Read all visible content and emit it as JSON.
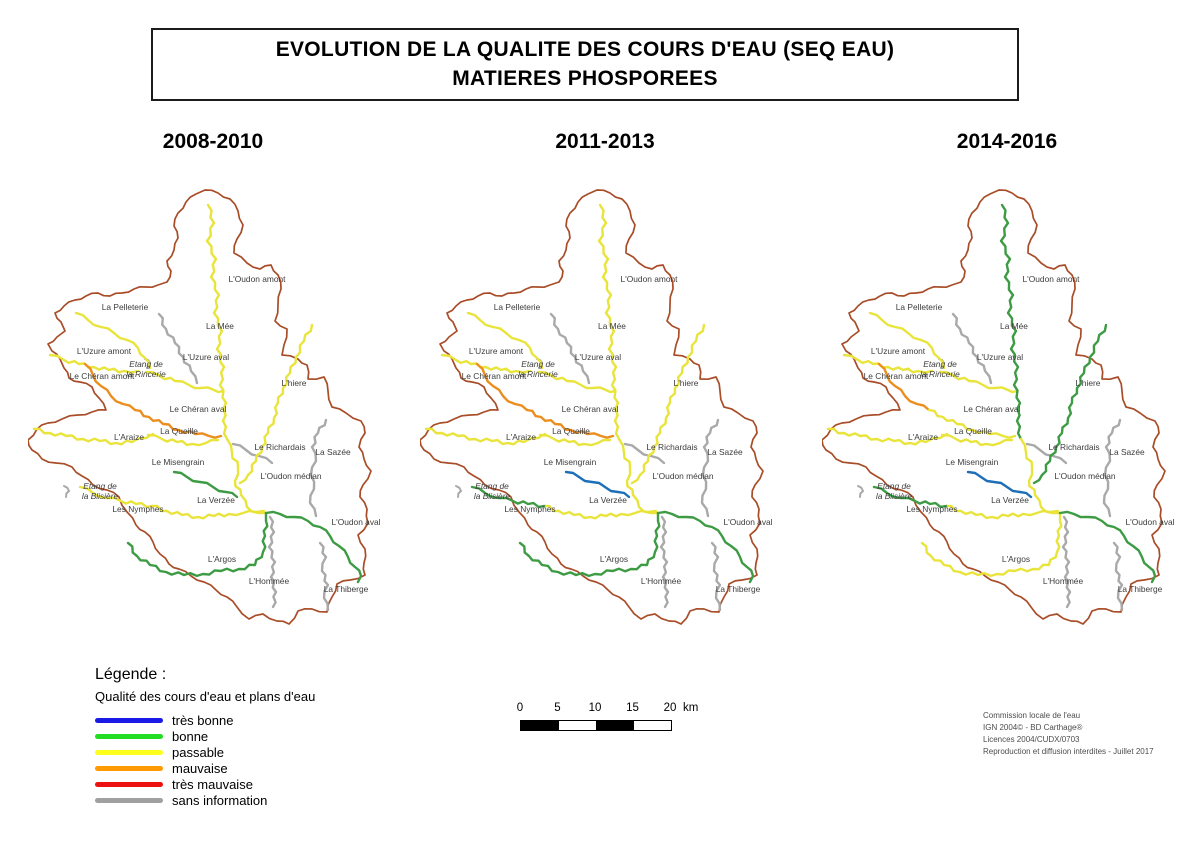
{
  "title": {
    "line1": "EVOLUTION DE LA QUALITE DES COURS D'EAU (SEQ EAU)",
    "line2": "MATIERES PHOSPOREES"
  },
  "periods": [
    {
      "label": "2008-2010",
      "river_quality": {
        "oudon_amont": "passable",
        "pelleterie": "passable",
        "mee": "sans_information",
        "uzure_amont": "passable",
        "uzure_aval": "passable",
        "cheran_amont": "mauvaise",
        "cheran_aval": "mauvaise",
        "hiere": "passable",
        "queille": "passable",
        "richardais": "sans_information",
        "sazee": "sans_information",
        "misengrain": "bonne",
        "oudon_median": "passable",
        "araize": "passable",
        "verzee": "passable",
        "nymphes": "passable",
        "argos": "bonne",
        "hommee": "sans_information",
        "thiberge": "sans_information",
        "oudon_aval": "bonne"
      }
    },
    {
      "label": "2011-2013",
      "river_quality": {
        "oudon_amont": "passable",
        "pelleterie": "passable",
        "mee": "sans_information",
        "uzure_amont": "passable",
        "uzure_aval": "passable",
        "cheran_amont": "mauvaise",
        "cheran_aval": "mauvaise",
        "hiere": "passable",
        "queille": "passable",
        "richardais": "sans_information",
        "sazee": "sans_information",
        "misengrain": "tres_bonne",
        "oudon_median": "passable",
        "araize": "passable",
        "verzee": "passable",
        "nymphes": "bonne",
        "argos": "bonne",
        "hommee": "sans_information",
        "thiberge": "sans_information",
        "oudon_aval": "bonne"
      }
    },
    {
      "label": "2014-2016",
      "river_quality": {
        "oudon_amont": "bonne",
        "pelleterie": "passable",
        "mee": "sans_information",
        "uzure_amont": "passable",
        "uzure_aval": "passable",
        "cheran_amont": "mauvaise",
        "cheran_aval": "passable",
        "hiere": "bonne",
        "queille": "passable",
        "richardais": "sans_information",
        "sazee": "sans_information",
        "misengrain": "tres_bonne",
        "oudon_median": "passable",
        "araize": "passable",
        "verzee": "passable",
        "nymphes": "bonne",
        "argos": "passable",
        "hommee": "sans_information",
        "thiberge": "sans_information",
        "oudon_aval": "bonne"
      }
    }
  ],
  "map": {
    "boundary_color": "#a84d28",
    "quality_colors": {
      "tres_bonne": "#1d6fb8",
      "bonne": "#3d9b44",
      "passable": "#e9e43b",
      "mauvaise": "#ec8e1e",
      "tres_mauvaise": "#e02020",
      "sans_information": "#a9a9a9"
    },
    "rivers": [
      {
        "id": "oudon_amont",
        "label": "L'Oudon amont"
      },
      {
        "id": "pelleterie",
        "label": "La Pelleterie"
      },
      {
        "id": "mee",
        "label": "La Mée"
      },
      {
        "id": "uzure_amont",
        "label": "L'Uzure amont"
      },
      {
        "id": "uzure_aval",
        "label": "L'Uzure aval"
      },
      {
        "id": "cheran_amont",
        "label": "Le Chéran amont"
      },
      {
        "id": "cheran_aval",
        "label": "Le Chéran aval"
      },
      {
        "id": "hiere",
        "label": "L'hiere"
      },
      {
        "id": "queille",
        "label": "La Queille"
      },
      {
        "id": "richardais",
        "label": "Le Richardais"
      },
      {
        "id": "sazee",
        "label": "La Sazée"
      },
      {
        "id": "misengrain",
        "label": "Le Misengrain"
      },
      {
        "id": "oudon_median",
        "label": "L'Oudon médian"
      },
      {
        "id": "araize",
        "label": "L'Araize"
      },
      {
        "id": "verzee",
        "label": "La Verzée"
      },
      {
        "id": "nymphes",
        "label": "Les Nymphes"
      },
      {
        "id": "argos",
        "label": "L'Argos"
      },
      {
        "id": "hommee",
        "label": "L'Hommée"
      },
      {
        "id": "thiberge",
        "label": "La Thiberge"
      },
      {
        "id": "oudon_aval",
        "label": "L'Oudon aval"
      }
    ],
    "ponds": [
      {
        "id": "etang_rincerie",
        "label": [
          "Etang de",
          "la Rincerie"
        ]
      },
      {
        "id": "etang_blisiere",
        "label": [
          "Etang de",
          "la Blisière"
        ]
      }
    ]
  },
  "legend": {
    "heading": "Légende :",
    "subheading": "Qualité des cours d'eau et plans d'eau",
    "items": [
      {
        "quality": "tres_bonne",
        "label": "très bonne",
        "color": "#1a1ae6"
      },
      {
        "quality": "bonne",
        "label": "bonne",
        "color": "#22dd22"
      },
      {
        "quality": "passable",
        "label": "passable",
        "color": "#ffff1e"
      },
      {
        "quality": "mauvaise",
        "label": "mauvaise",
        "color": "#ff9a00"
      },
      {
        "quality": "tres_mauvaise",
        "label": "très mauvaise",
        "color": "#ee1111"
      },
      {
        "quality": "sans_information",
        "label": "sans information",
        "color": "#a0a0a0"
      }
    ]
  },
  "scalebar": {
    "tick_labels": [
      "0",
      "5",
      "10",
      "15",
      "20"
    ],
    "unit": "km",
    "segment_colors": [
      "#000000",
      "#ffffff",
      "#000000",
      "#ffffff"
    ]
  },
  "credits": {
    "lines": [
      "Commission locale de l'eau",
      "IGN 2004© - BD Carthage®",
      "Licences 2004/CUDX/0703",
      "Reproduction et diffusion interdites - Juillet 2017"
    ]
  }
}
